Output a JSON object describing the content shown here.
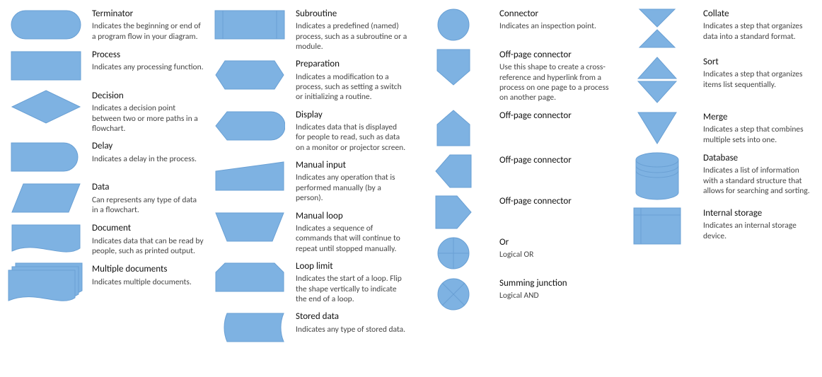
{
  "shape_fill": "#7eb2e2",
  "shape_stroke": "#6aa0d4",
  "background_color": "#ffffff",
  "title_color": "#111111",
  "desc_color": "#444444",
  "title_fontsize": 13,
  "desc_fontsize": 11.5,
  "columns": [
    [
      {
        "shape": "terminator",
        "title": "Terminator",
        "desc": "Indicates the beginning or end of a program flow in your diagram."
      },
      {
        "shape": "process",
        "title": "Process",
        "desc": "Indicates any processing function."
      },
      {
        "shape": "decision",
        "title": "Decision",
        "desc": "Indicates a decision point between two or more paths in a flowchart."
      },
      {
        "shape": "delay",
        "title": "Delay",
        "desc": "Indicates a delay in the process."
      },
      {
        "shape": "data",
        "title": "Data",
        "desc": "Can represents any type of data in a flowchart."
      },
      {
        "shape": "document",
        "title": "Document",
        "desc": "Indicates data that can be read by people, such as printed output."
      },
      {
        "shape": "multidoc",
        "title": "Multiple documents",
        "desc": "Indicates multiple documents."
      }
    ],
    [
      {
        "shape": "subroutine",
        "title": "Subroutine",
        "desc": "Indicates a predefined (named) process, such as a subroutine or a module."
      },
      {
        "shape": "preparation",
        "title": "Preparation",
        "desc": "Indicates a modification to a process, such as setting a switch or initializing a routine."
      },
      {
        "shape": "display",
        "title": "Display",
        "desc": "Indicates data that is displayed for people to read, such as data on a monitor or projector screen."
      },
      {
        "shape": "manualinput",
        "title": "Manual input",
        "desc": "Indicates any operation that is performed manually (by a person)."
      },
      {
        "shape": "manualloop",
        "title": "Manual loop",
        "desc": "Indicates a sequence of commands that will continue to repeat until stopped manually."
      },
      {
        "shape": "looplimit",
        "title": "Loop limit",
        "desc": "Indicates the start of a loop. Flip the shape vertically to indicate the end of a loop."
      },
      {
        "shape": "storeddata",
        "title": "Stored data",
        "desc": "Indicates any type of stored data."
      }
    ],
    [
      {
        "shape": "connector",
        "title": "Connector",
        "desc": "Indicates an inspection point."
      },
      {
        "shape": "offpage-down",
        "title": "Off-page connector",
        "desc": "Use this shape to create a cross-reference and hyperlink from a process on one page to a process on another page."
      },
      {
        "shape": "offpage-up",
        "title": "Off-page connector",
        "desc": ""
      },
      {
        "shape": "offpage-left",
        "title": "Off-page connector",
        "desc": ""
      },
      {
        "shape": "offpage-right",
        "title": "Off-page connector",
        "desc": ""
      },
      {
        "shape": "or",
        "title": "Or",
        "desc": "Logical OR"
      },
      {
        "shape": "summing",
        "title": "Summing junction",
        "desc": "Logical AND"
      }
    ],
    [
      {
        "shape": "collate",
        "title": "Collate",
        "desc": "Indicates a step that organizes data into a standard format."
      },
      {
        "shape": "sort",
        "title": "Sort",
        "desc": "Indicates a step that organizes items list sequentially."
      },
      {
        "shape": "merge",
        "title": "Merge",
        "desc": "Indicates a step that combines multiple sets into one."
      },
      {
        "shape": "database",
        "title": "Database",
        "desc": "Indicates a list of information with a standard structure that allows for searching and sorting."
      },
      {
        "shape": "internalstorage",
        "title": "Internal storage",
        "desc": "Indicates an internal storage device."
      }
    ]
  ]
}
